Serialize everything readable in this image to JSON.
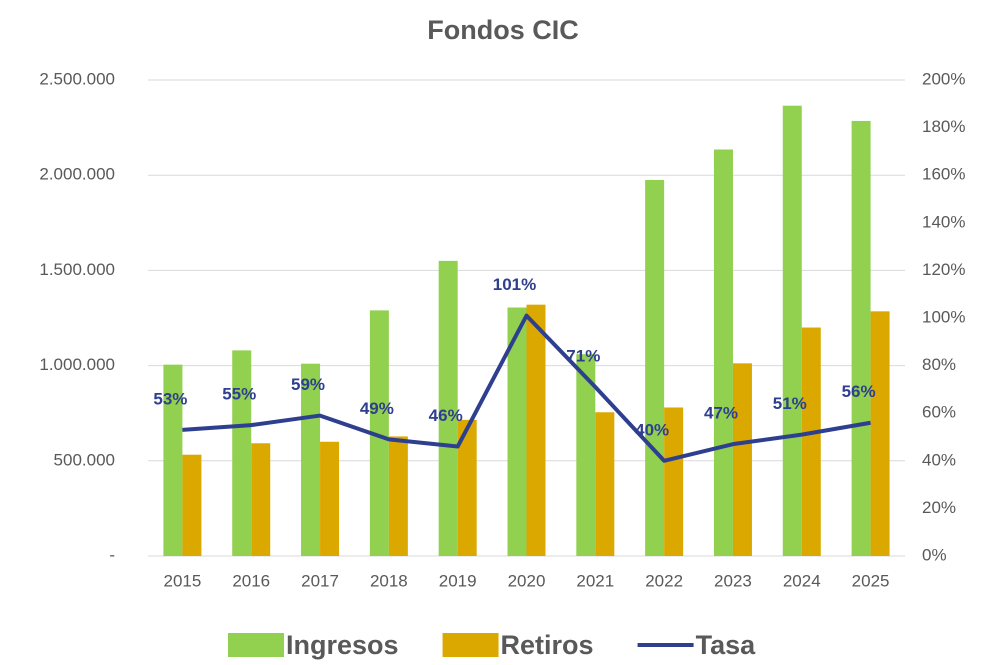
{
  "chart_data": {
    "type": "bar_line",
    "title": "Fondos CIC",
    "categories": [
      "2015",
      "2016",
      "2017",
      "2018",
      "2019",
      "2020",
      "2021",
      "2022",
      "2023",
      "2024",
      "2025"
    ],
    "series": [
      {
        "name": "Ingresos",
        "type": "bar",
        "color": "#92d050",
        "values": [
          1005000,
          1080000,
          1010000,
          1290000,
          1550000,
          1305000,
          1060000,
          1975000,
          2135000,
          2365000,
          2285000
        ]
      },
      {
        "name": "Retiros",
        "type": "bar",
        "color": "#dba800",
        "values": [
          532000,
          592000,
          600000,
          628000,
          715000,
          1320000,
          755000,
          780000,
          1012000,
          1200000,
          1285000
        ]
      },
      {
        "name": "Tasa",
        "type": "line",
        "axis": "y2",
        "color": "#2e3f8f",
        "values": [
          53,
          55,
          59,
          49,
          46,
          101,
          71,
          40,
          47,
          51,
          56
        ],
        "value_labels": [
          "53%",
          "55%",
          "59%",
          "49%",
          "46%",
          "101%",
          "71%",
          "40%",
          "47%",
          "51%",
          "56%"
        ]
      }
    ],
    "ylim": [
      0,
      2500000
    ],
    "yticks": [
      {
        "value": 0,
        "label": "-"
      },
      {
        "value": 500000,
        "label": "500.000"
      },
      {
        "value": 1000000,
        "label": "1.000.000"
      },
      {
        "value": 1500000,
        "label": "1.500.000"
      },
      {
        "value": 2000000,
        "label": "2.000.000"
      },
      {
        "value": 2500000,
        "label": "2.500.000"
      }
    ],
    "y2lim": [
      0,
      200
    ],
    "y2ticks": [
      {
        "value": 0,
        "label": "0%"
      },
      {
        "value": 20,
        "label": "20%"
      },
      {
        "value": 40,
        "label": "40%"
      },
      {
        "value": 60,
        "label": "60%"
      },
      {
        "value": 80,
        "label": "80%"
      },
      {
        "value": 100,
        "label": "100%"
      },
      {
        "value": 120,
        "label": "120%"
      },
      {
        "value": 140,
        "label": "140%"
      },
      {
        "value": 160,
        "label": "160%"
      },
      {
        "value": 180,
        "label": "180%"
      },
      {
        "value": 200,
        "label": "200%"
      }
    ],
    "grid": true,
    "legend": "bottom"
  }
}
